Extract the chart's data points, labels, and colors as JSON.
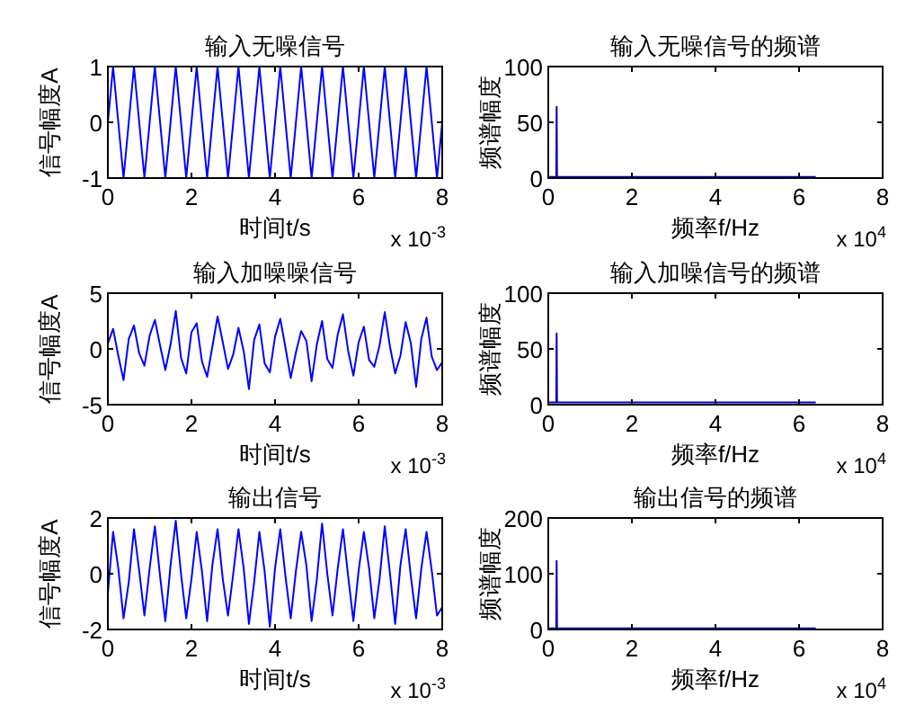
{
  "chart_data": [
    {
      "type": "line",
      "title": "输入无噪信号",
      "xlabel": "时间t/s",
      "ylabel": "信号幅度A",
      "annotations": [
        "x 10$^{-3}$"
      ],
      "xlim": [
        0,
        8
      ],
      "xticks": [
        0,
        2,
        4,
        6,
        8
      ],
      "ylim": [
        -1,
        1
      ],
      "yticks": [
        -1,
        0,
        1
      ],
      "x": [
        0,
        0.125,
        0.25,
        0.375,
        0.5,
        0.625,
        0.75,
        0.875,
        1,
        1.125,
        1.25,
        1.375,
        1.5,
        1.625,
        1.75,
        1.875,
        2,
        2.125,
        2.25,
        2.375,
        2.5,
        2.625,
        2.75,
        2.875,
        3,
        3.125,
        3.25,
        3.375,
        3.5,
        3.625,
        3.75,
        3.875,
        4,
        4.125,
        4.25,
        4.375,
        4.5,
        4.625,
        4.75,
        4.875,
        5,
        5.125,
        5.25,
        5.375,
        5.5,
        5.625,
        5.75,
        5.875,
        6,
        6.125,
        6.25,
        6.375,
        6.5,
        6.625,
        6.75,
        6.875,
        7,
        7.125,
        7.25,
        7.375,
        7.5,
        7.625,
        7.75,
        7.875,
        8
      ],
      "series": [
        {
          "color": "#0000ff",
          "values": [
            0,
            1,
            0,
            -1,
            0,
            1,
            0,
            -1,
            0,
            1,
            0,
            -1,
            0,
            1,
            0,
            -1,
            0,
            1,
            0,
            -1,
            0,
            1,
            0,
            -1,
            0,
            1,
            0,
            -1,
            0,
            1,
            0,
            -1,
            0,
            1,
            0,
            -1,
            0,
            1,
            0,
            -1,
            0,
            1,
            0,
            -1,
            0,
            1,
            0,
            -1,
            0,
            1,
            0,
            -1,
            0,
            1,
            0,
            -1,
            0,
            1,
            0,
            -1,
            0,
            1,
            0,
            -1,
            0
          ]
        }
      ]
    },
    {
      "type": "line",
      "title": "输入无噪信号的频谱",
      "xlabel": "频率f/Hz",
      "ylabel": "频谱幅度",
      "annotations": [
        "x 10$^{4}$"
      ],
      "xlim": [
        0,
        8
      ],
      "xticks": [
        0,
        2,
        4,
        6,
        8
      ],
      "ylim": [
        0,
        100
      ],
      "yticks": [
        0,
        50,
        100
      ],
      "x": [
        0,
        0.1,
        0.19,
        0.2,
        0.21,
        0.3,
        6.4
      ],
      "series": [
        {
          "color": "#0000c8",
          "values": [
            1,
            1,
            1,
            64,
            1,
            1,
            1
          ]
        }
      ]
    },
    {
      "type": "line",
      "title": "输入加噪噪信号",
      "xlabel": "时间t/s",
      "ylabel": "信号幅度A",
      "annotations": [
        "x 10$^{-3}$"
      ],
      "xlim": [
        0,
        8
      ],
      "xticks": [
        0,
        2,
        4,
        6,
        8
      ],
      "ylim": [
        -5,
        5
      ],
      "yticks": [
        -5,
        0,
        5
      ],
      "x": [
        0,
        0.125,
        0.25,
        0.375,
        0.5,
        0.625,
        0.75,
        0.875,
        1,
        1.125,
        1.25,
        1.375,
        1.5,
        1.625,
        1.75,
        1.875,
        2,
        2.125,
        2.25,
        2.375,
        2.5,
        2.625,
        2.75,
        2.875,
        3,
        3.125,
        3.25,
        3.375,
        3.5,
        3.625,
        3.75,
        3.875,
        4,
        4.125,
        4.25,
        4.375,
        4.5,
        4.625,
        4.75,
        4.875,
        5,
        5.125,
        5.25,
        5.375,
        5.5,
        5.625,
        5.75,
        5.875,
        6,
        6.125,
        6.25,
        6.375,
        6.5,
        6.625,
        6.75,
        6.875,
        7,
        7.125,
        7.25,
        7.375,
        7.5,
        7.625,
        7.75,
        7.875,
        8
      ],
      "series": [
        {
          "color": "#0000ff",
          "values": [
            0.5,
            1.8,
            -0.6,
            -2.8,
            0.9,
            2.1,
            -0.4,
            -1.5,
            1.2,
            2.6,
            0.3,
            -1.9,
            0.4,
            3.4,
            -0.8,
            -2.2,
            1.5,
            2.3,
            -1.1,
            -2.5,
            0.2,
            2.9,
            0.6,
            -1.8,
            -0.5,
            1.9,
            -0.2,
            -3.6,
            0.8,
            2.2,
            -1.3,
            -2.1,
            1.1,
            2.7,
            0.1,
            -2.6,
            -0.3,
            1.6,
            0.7,
            -2.9,
            0.4,
            2.5,
            -0.9,
            -1.7,
            1.3,
            3.1,
            -0.2,
            -2.4,
            0.6,
            2.0,
            -1.0,
            -1.6,
            0.3,
            3.3,
            0.2,
            -2.2,
            -0.6,
            2.4,
            0.5,
            -3.4,
            0.9,
            2.8,
            -0.7,
            -1.9,
            -1.2
          ]
        }
      ]
    },
    {
      "type": "line",
      "title": "输入加噪信号的频谱",
      "xlabel": "频率f/Hz",
      "ylabel": "频谱幅度",
      "annotations": [
        "x 10$^{4}$"
      ],
      "xlim": [
        0,
        8
      ],
      "xticks": [
        0,
        2,
        4,
        6,
        8
      ],
      "ylim": [
        0,
        100
      ],
      "yticks": [
        0,
        50,
        100
      ],
      "x": [
        0,
        0.1,
        0.19,
        0.2,
        0.21,
        0.3,
        6.4
      ],
      "series": [
        {
          "color": "#0000c8",
          "values": [
            2,
            2,
            2,
            64,
            2,
            2,
            2
          ]
        }
      ]
    },
    {
      "type": "line",
      "title": "输出信号",
      "xlabel": "时间t/s",
      "ylabel": "信号幅度A",
      "annotations": [
        "x 10$^{-3}$"
      ],
      "xlim": [
        0,
        8
      ],
      "xticks": [
        0,
        2,
        4,
        6,
        8
      ],
      "ylim": [
        -2,
        2
      ],
      "yticks": [
        -2,
        0,
        2
      ],
      "x": [
        0,
        0.125,
        0.25,
        0.375,
        0.5,
        0.625,
        0.75,
        0.875,
        1,
        1.125,
        1.25,
        1.375,
        1.5,
        1.625,
        1.75,
        1.875,
        2,
        2.125,
        2.25,
        2.375,
        2.5,
        2.625,
        2.75,
        2.875,
        3,
        3.125,
        3.25,
        3.375,
        3.5,
        3.625,
        3.75,
        3.875,
        4,
        4.125,
        4.25,
        4.375,
        4.5,
        4.625,
        4.75,
        4.875,
        5,
        5.125,
        5.25,
        5.375,
        5.5,
        5.625,
        5.75,
        5.875,
        6,
        6.125,
        6.25,
        6.375,
        6.5,
        6.625,
        6.75,
        6.875,
        7,
        7.125,
        7.25,
        7.375,
        7.5,
        7.625,
        7.75,
        7.875,
        8
      ],
      "series": [
        {
          "color": "#0000ff",
          "values": [
            -0.7,
            1.5,
            0.2,
            -1.6,
            -0.3,
            1.6,
            0.1,
            -1.5,
            0.2,
            1.7,
            -0.1,
            -1.7,
            0.3,
            1.9,
            0,
            -1.6,
            -0.2,
            1.5,
            0.1,
            -1.7,
            0.3,
            1.6,
            -0.2,
            -1.5,
            0,
            1.6,
            0.2,
            -1.8,
            -0.3,
            1.5,
            0.1,
            -1.9,
            0.2,
            1.6,
            -0.1,
            -1.6,
            0.1,
            1.5,
            0.3,
            -1.7,
            -0.2,
            1.8,
            0,
            -1.5,
            0.2,
            1.6,
            -0.1,
            -1.7,
            0.1,
            1.5,
            0.2,
            -1.6,
            -0.2,
            1.7,
            0,
            -1.8,
            0.3,
            1.6,
            -0.1,
            -1.6,
            0.2,
            1.5,
            0.1,
            -1.5,
            -1.2
          ]
        }
      ]
    },
    {
      "type": "line",
      "title": "输出信号的频谱",
      "xlabel": "频率f/Hz",
      "ylabel": "频谱幅度",
      "annotations": [
        "x 10$^{4}$"
      ],
      "xlim": [
        0,
        8
      ],
      "xticks": [
        0,
        2,
        4,
        6,
        8
      ],
      "ylim": [
        0,
        200
      ],
      "yticks": [
        0,
        100,
        200
      ],
      "x": [
        0,
        0.1,
        0.19,
        0.2,
        0.21,
        0.3,
        6.4
      ],
      "series": [
        {
          "color": "#0000c8",
          "values": [
            2,
            2,
            2,
            123,
            2,
            2,
            2
          ]
        }
      ]
    }
  ]
}
